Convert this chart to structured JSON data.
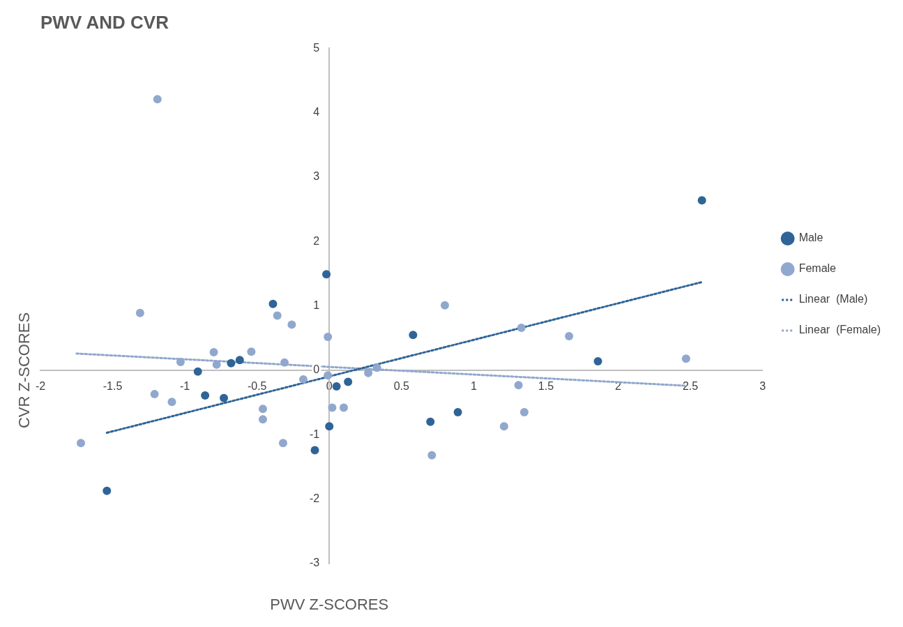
{
  "chart_data": {
    "type": "scatter",
    "title": "PWV AND CVR",
    "xlabel": "PWV Z-SCORES",
    "ylabel": "CVR Z-SCORES",
    "xlim": [
      -2,
      3
    ],
    "xticks": [
      -2,
      -1.5,
      -1,
      -0.5,
      0,
      0.5,
      1,
      1.5,
      2,
      2.5,
      3
    ],
    "ylim": [
      -3,
      5
    ],
    "yticks": [
      -3,
      -2,
      -1,
      0,
      1,
      2,
      3,
      4,
      5
    ],
    "grid": false,
    "legend": "right",
    "marker": "circle",
    "series": [
      {
        "name": "Male",
        "color": "#2f6497",
        "x": [
          -0.02,
          -0.39,
          -0.91,
          -0.86,
          -0.73,
          -0.68,
          -0.62,
          0.05,
          0.13,
          0.0,
          -0.1,
          -1.54,
          0.58,
          0.7,
          0.89,
          1.86,
          2.58
        ],
        "values": [
          1.49,
          1.03,
          -0.02,
          -0.39,
          -0.43,
          0.11,
          0.16,
          -0.25,
          -0.18,
          -0.87,
          -1.24,
          -1.87,
          0.55,
          -0.8,
          -0.65,
          0.14,
          2.64
        ]
      },
      {
        "name": "Female",
        "color": "#90a8cd",
        "x": [
          -1.19,
          -1.31,
          -1.72,
          -1.21,
          -1.09,
          -1.03,
          -0.8,
          -0.78,
          -0.54,
          -0.36,
          -0.26,
          -0.31,
          -0.46,
          -0.46,
          -0.32,
          -0.18,
          -0.01,
          -0.01,
          0.02,
          0.1,
          0.27,
          0.33,
          0.8,
          1.33,
          1.66,
          2.47,
          1.31,
          1.35,
          1.21,
          0.71
        ],
        "values": [
          4.21,
          0.89,
          -1.13,
          -0.37,
          -0.49,
          0.13,
          0.28,
          0.09,
          0.29,
          0.85,
          0.71,
          0.12,
          -0.6,
          -0.76,
          -1.13,
          -0.14,
          0.52,
          -0.08,
          -0.58,
          -0.58,
          -0.04,
          0.04,
          1.01,
          0.66,
          0.53,
          0.18,
          -0.23,
          -0.65,
          -0.87,
          -1.32
        ]
      },
      {
        "name": "Linear  (Male)",
        "type": "line",
        "line_style": "dotted",
        "marker": "none",
        "color": "#2f6497",
        "x": [
          -1.54,
          2.58
        ],
        "values": [
          -0.97,
          1.37
        ]
      },
      {
        "name": "Linear  (Female)",
        "type": "line",
        "line_style": "dotted",
        "marker": "none",
        "color": "#90a8cd",
        "x": [
          -1.75,
          2.47
        ],
        "values": [
          0.26,
          -0.24
        ]
      }
    ]
  }
}
